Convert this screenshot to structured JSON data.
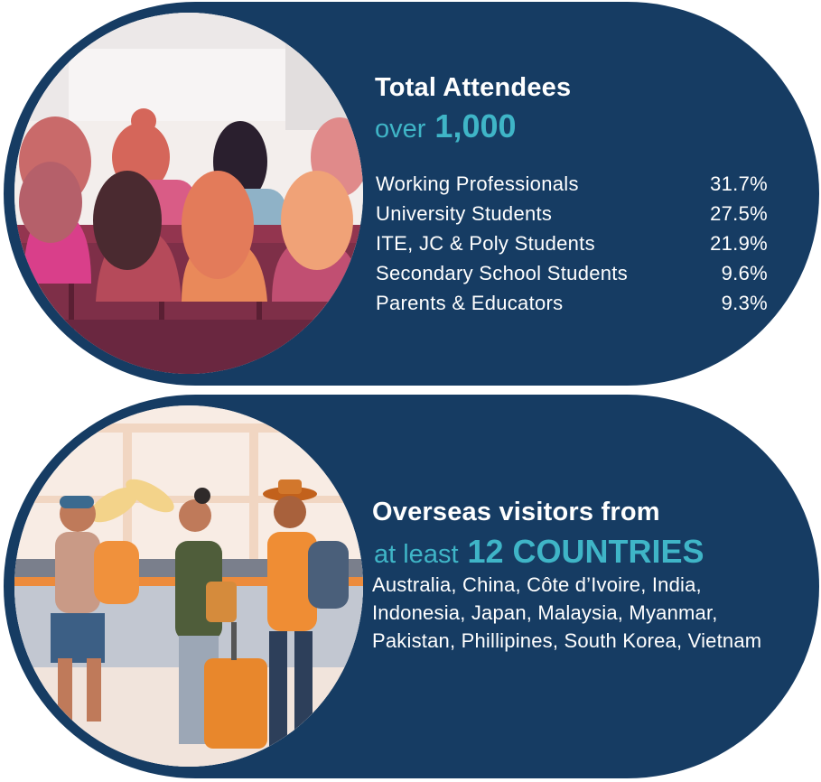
{
  "attendees": {
    "title": "Total Attendees",
    "prefix": "over",
    "count": "1,000",
    "breakdown": [
      {
        "label": "Working Professionals",
        "percent": "31.7%"
      },
      {
        "label": "University Students",
        "percent": "27.5%"
      },
      {
        "label": "ITE, JC & Poly Students",
        "percent": "21.9%"
      },
      {
        "label": "Secondary School Students",
        "percent": "9.6%"
      },
      {
        "label": "Parents & Educators",
        "percent": "9.3%"
      }
    ]
  },
  "visitors": {
    "title": "Overseas visitors from",
    "prefix": "at least",
    "count": "12 COUNTRIES",
    "countries": "Australia, China, Côte d’Ivoire, India, Indonesia, Japan, Malaysia, Myanmar, Pakistan, Phillipines, South Korea, Vietnam"
  },
  "colors": {
    "panel": "#163c63",
    "accent": "#3fb5c7",
    "text": "#ffffff"
  }
}
